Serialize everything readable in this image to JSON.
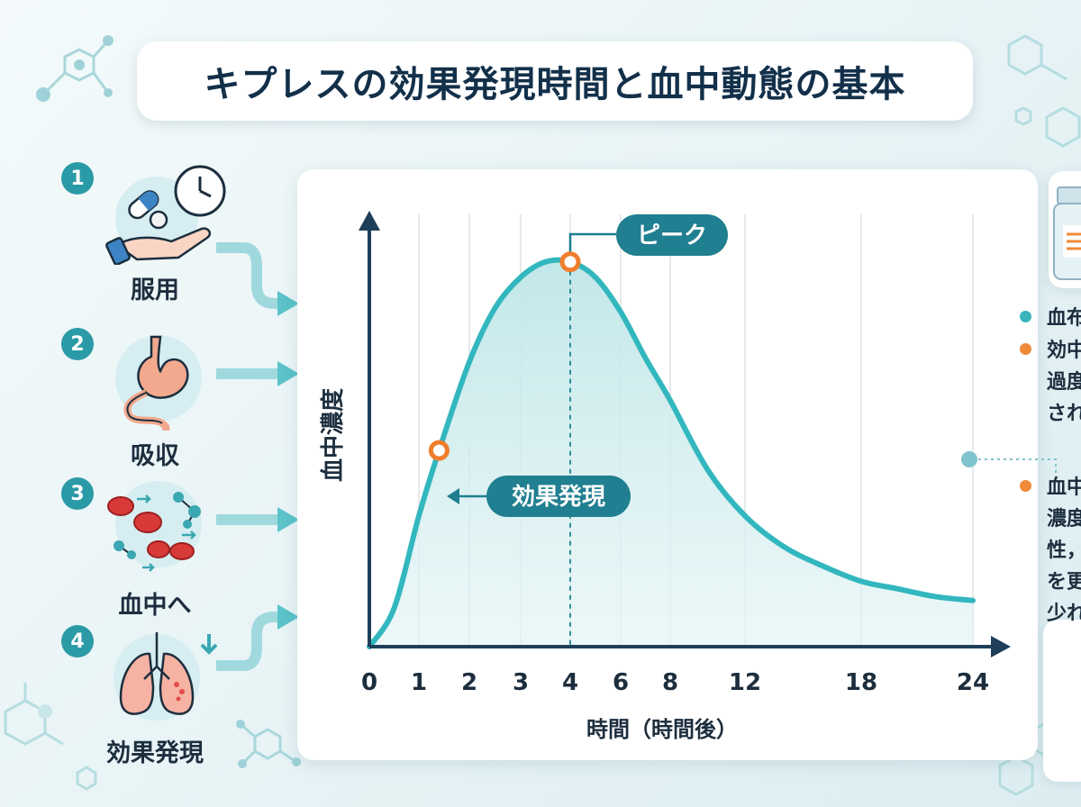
{
  "title": "キプレスの効果発現時間と血中動態の基本",
  "steps": [
    {
      "number": "1",
      "label": "服用"
    },
    {
      "number": "2",
      "label": "吸収"
    },
    {
      "number": "3",
      "label": "血中へ"
    },
    {
      "number": "4",
      "label": "効果発現"
    }
  ],
  "chart_data": {
    "type": "line",
    "ylabel": "血中濃度",
    "xlabel": "時間（時間後）",
    "x_ticks": [
      0,
      1,
      2,
      3,
      4,
      6,
      8,
      12,
      18,
      24
    ],
    "x": [
      0,
      0.5,
      1,
      1.4,
      2,
      2.5,
      3,
      3.5,
      4,
      5,
      6,
      7,
      8,
      10,
      12,
      14,
      16,
      18,
      20,
      22,
      24
    ],
    "y": [
      0,
      0.1,
      0.34,
      0.51,
      0.74,
      0.88,
      0.96,
      1.0,
      1.0,
      0.96,
      0.87,
      0.75,
      0.64,
      0.46,
      0.34,
      0.26,
      0.21,
      0.17,
      0.15,
      0.13,
      0.12
    ],
    "ylim": [
      0,
      1.1
    ],
    "fill": true,
    "grid": "vertical",
    "line_color": "#33b7bf",
    "fill_color": "#bfe6e8",
    "marker_color": "#ef7d2c",
    "annotations": [
      {
        "label": "ピーク",
        "x": 4,
        "y": 1.0
      },
      {
        "label": "効果発現",
        "x": 1.4,
        "y": 0.51
      }
    ]
  },
  "legend_items": [
    {
      "color": "#39b4bd",
      "text": "血布"
    },
    {
      "color": "#ef8a3a",
      "text": "効中\n過度\nされ"
    },
    {
      "color": "#ef8a3a",
      "text": "血中\n濃度\n性，\nを更\n少れ"
    }
  ],
  "colors": {
    "accent": "#2a9aa6",
    "title_text": "#13304a",
    "axis": "#1e3e5a",
    "arrow": "#5cc3ca"
  }
}
